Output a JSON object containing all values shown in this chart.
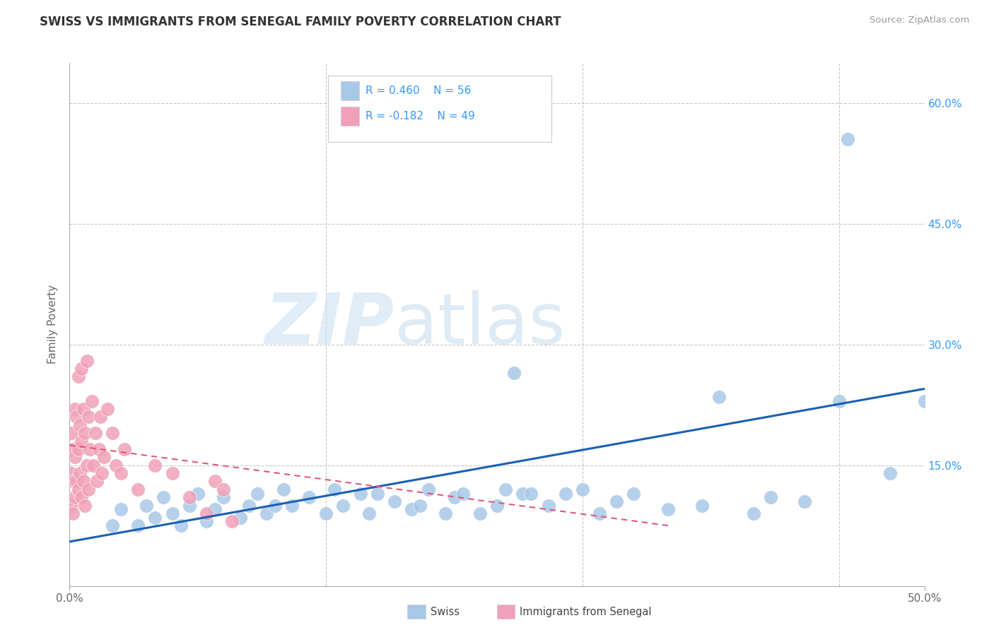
{
  "title": "SWISS VS IMMIGRANTS FROM SENEGAL FAMILY POVERTY CORRELATION CHART",
  "source": "Source: ZipAtlas.com",
  "ylabel": "Family Poverty",
  "xlim": [
    0.0,
    0.5
  ],
  "ylim": [
    0.0,
    0.65
  ],
  "ytick_positions": [
    0.0,
    0.15,
    0.3,
    0.45,
    0.6
  ],
  "ytick_labels_right": [
    "",
    "15.0%",
    "30.0%",
    "45.0%",
    "60.0%"
  ],
  "grid_color": "#c8c8c8",
  "background_color": "#ffffff",
  "swiss_color": "#a8c8e8",
  "senegal_color": "#f0a0b8",
  "swiss_R": 0.46,
  "swiss_N": 56,
  "senegal_R": -0.182,
  "senegal_N": 49,
  "trend_swiss_color": "#1a5fb4",
  "trend_senegal_color": "#e05878",
  "watermark_zip": "ZIP",
  "watermark_atlas": "atlas",
  "legend_swiss": "Swiss",
  "legend_senegal": "Immigrants from Senegal",
  "swiss_x": [
    0.025,
    0.03,
    0.04,
    0.045,
    0.05,
    0.055,
    0.06,
    0.065,
    0.07,
    0.075,
    0.08,
    0.085,
    0.09,
    0.1,
    0.105,
    0.11,
    0.115,
    0.12,
    0.125,
    0.13,
    0.14,
    0.15,
    0.155,
    0.16,
    0.17,
    0.175,
    0.18,
    0.19,
    0.2,
    0.205,
    0.21,
    0.22,
    0.225,
    0.23,
    0.24,
    0.25,
    0.255,
    0.26,
    0.265,
    0.27,
    0.28,
    0.29,
    0.3,
    0.31,
    0.32,
    0.33,
    0.35,
    0.37,
    0.38,
    0.4,
    0.41,
    0.43,
    0.45,
    0.455,
    0.48,
    0.5
  ],
  "swiss_y": [
    0.075,
    0.095,
    0.075,
    0.1,
    0.085,
    0.11,
    0.09,
    0.075,
    0.1,
    0.115,
    0.08,
    0.095,
    0.11,
    0.085,
    0.1,
    0.115,
    0.09,
    0.1,
    0.12,
    0.1,
    0.11,
    0.09,
    0.12,
    0.1,
    0.115,
    0.09,
    0.115,
    0.105,
    0.095,
    0.1,
    0.12,
    0.09,
    0.11,
    0.115,
    0.09,
    0.1,
    0.12,
    0.265,
    0.115,
    0.115,
    0.1,
    0.115,
    0.12,
    0.09,
    0.105,
    0.115,
    0.095,
    0.1,
    0.235,
    0.09,
    0.11,
    0.105,
    0.23,
    0.555,
    0.14,
    0.23
  ],
  "senegal_x": [
    0.001,
    0.001,
    0.001,
    0.002,
    0.002,
    0.002,
    0.003,
    0.003,
    0.003,
    0.004,
    0.004,
    0.005,
    0.005,
    0.005,
    0.006,
    0.006,
    0.007,
    0.007,
    0.007,
    0.008,
    0.008,
    0.009,
    0.009,
    0.01,
    0.01,
    0.011,
    0.011,
    0.012,
    0.013,
    0.014,
    0.015,
    0.016,
    0.017,
    0.018,
    0.019,
    0.02,
    0.022,
    0.025,
    0.027,
    0.03,
    0.032,
    0.04,
    0.05,
    0.06,
    0.07,
    0.08,
    0.085,
    0.09,
    0.095
  ],
  "senegal_y": [
    0.1,
    0.14,
    0.19,
    0.09,
    0.13,
    0.17,
    0.11,
    0.16,
    0.22,
    0.13,
    0.21,
    0.12,
    0.17,
    0.26,
    0.14,
    0.2,
    0.11,
    0.18,
    0.27,
    0.13,
    0.22,
    0.1,
    0.19,
    0.15,
    0.28,
    0.12,
    0.21,
    0.17,
    0.23,
    0.15,
    0.19,
    0.13,
    0.17,
    0.21,
    0.14,
    0.16,
    0.22,
    0.19,
    0.15,
    0.14,
    0.17,
    0.12,
    0.15,
    0.14,
    0.11,
    0.09,
    0.13,
    0.12,
    0.08
  ],
  "swiss_trend_x0": 0.0,
  "swiss_trend_y0": 0.055,
  "swiss_trend_x1": 0.5,
  "swiss_trend_y1": 0.245,
  "senegal_trend_x0": 0.0,
  "senegal_trend_y0": 0.175,
  "senegal_trend_x1": 0.35,
  "senegal_trend_y1": 0.075
}
